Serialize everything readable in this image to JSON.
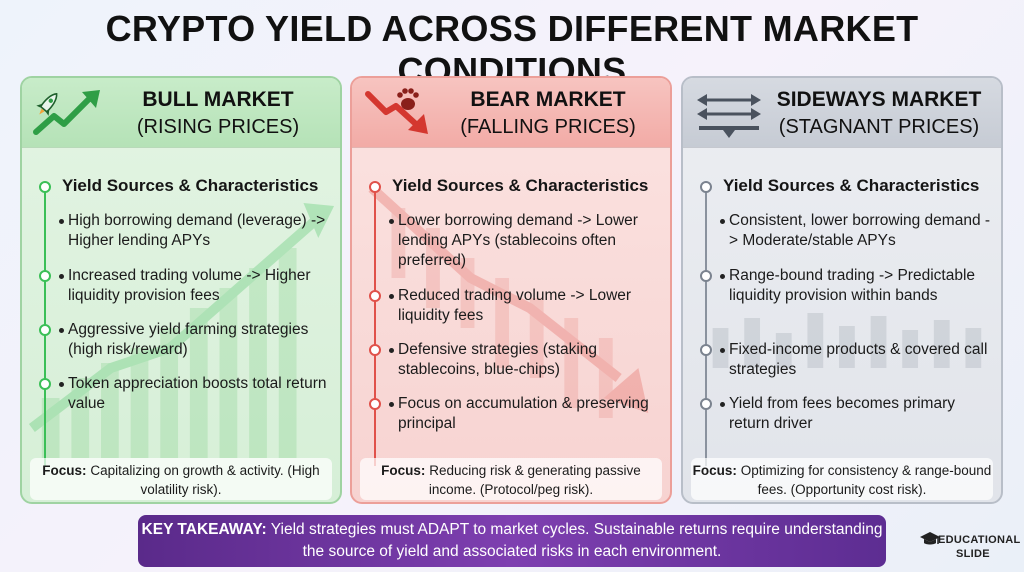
{
  "title": "CRYPTO YIELD ACROSS DIFFERENT MARKET CONDITIONS",
  "panels": [
    {
      "heading": "BULL MARKET",
      "subheading": "(RISING PRICES)",
      "icon": "rocket-rising-arrow-icon",
      "section_title": "Yield Sources & Characteristics",
      "bullets": [
        "High borrowing demand (leverage) -> Higher lending APYs",
        "Increased trading volume -> Higher liquidity provision fees",
        "Aggressive yield farming strategies (high risk/reward)",
        "Token appreciation boosts total return value"
      ],
      "focus_label": "Focus:",
      "focus_text": "Capitalizing on growth & activity. (High volatility risk).",
      "accent": "#3bbf57"
    },
    {
      "heading": "BEAR MARKET",
      "subheading": "(FALLING PRICES)",
      "icon": "bear-paw-falling-arrow-icon",
      "section_title": "Yield Sources & Characteristics",
      "bullets": [
        "Lower borrowing demand -> Lower lending APYs (stablecoins often preferred)",
        "Reduced trading volume -> Lower liquidity fees",
        "Defensive strategies (staking stablecoins, blue-chips)",
        "Focus on accumulation & preserving principal"
      ],
      "focus_label": "Focus:",
      "focus_text": "Reducing risk & generating passive income. (Protocol/peg risk).",
      "accent": "#e0514a"
    },
    {
      "heading": "SIDEWAYS MARKET",
      "subheading": "(STAGNANT PRICES)",
      "icon": "balance-arrows-icon",
      "section_title": "Yield Sources & Characteristics",
      "bullets": [
        "Consistent, lower borrowing demand -> Moderate/stable APYs",
        "Range-bound trading -> Predictable liquidity provision within bands",
        "Fixed-income products & covered call strategies",
        "Yield from fees becomes primary return driver"
      ],
      "focus_label": "Focus:",
      "focus_text": "Optimizing for consistency & range-bound fees. (Opportunity cost risk).",
      "accent": "#7b838f"
    }
  ],
  "takeaway": {
    "label": "KEY TAKEAWAY:",
    "text": "Yield strategies must ADAPT to market cycles. Sustainable returns require understanding the source of yield and associated risks in each environment."
  },
  "logo": {
    "line1": "EDUCATIONAL",
    "line2": "SLIDE",
    "icon": "graduation-cap-icon"
  }
}
